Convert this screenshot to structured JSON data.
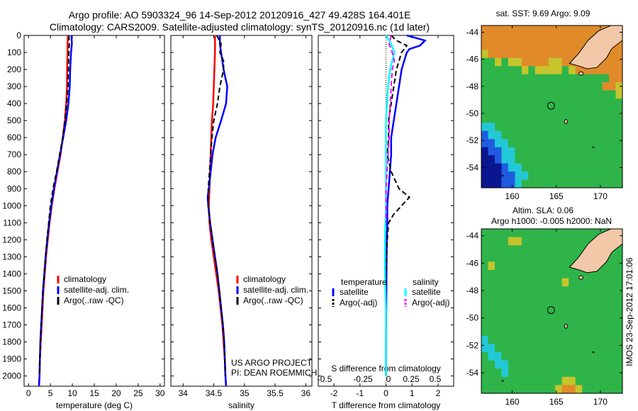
{
  "header": {
    "line1": "Argo profile: AO 5903324_96 14-Sep-2012 20120916_427 49.428S 164.401E",
    "line2": "Climatology: CARS2009. Satellite-adjusted climatology: synTS_20120916.nc (1d later)"
  },
  "depth_ticks": [
    "0",
    "100",
    "200",
    "300",
    "400",
    "500",
    "600",
    "700",
    "800",
    "900",
    "1000",
    "1100",
    "1200",
    "1300",
    "1400",
    "1500",
    "1600",
    "1700",
    "1800",
    "1900",
    "2000"
  ],
  "colors": {
    "climatology": "#ff0000",
    "satellite": "#0000ff",
    "argo": "#000000",
    "satellite_salinity": "#00ffff",
    "argo_salinity": "#ff00ff"
  },
  "chart_data": [
    {
      "type": "line",
      "xlabel": "temperature (deg C)",
      "ylabel": "",
      "xlim": [
        -1,
        31
      ],
      "ylim": [
        2060,
        0
      ],
      "x_ticks": [
        "0",
        "5",
        "10",
        "15",
        "20",
        "25",
        "30"
      ],
      "legend": [
        "climatology",
        "satellite-adj. clim.",
        "Argo(..raw -QC)"
      ],
      "legend_position": "lower-left",
      "series": [
        {
          "name": "climatology",
          "color": "#ff0000",
          "depth": [
            0,
            50,
            100,
            200,
            300,
            400,
            500,
            600,
            700,
            800,
            900,
            1000,
            1100,
            1200,
            1300,
            1400,
            1500,
            1600,
            1700,
            1800,
            1900,
            2000,
            2060
          ],
          "values": [
            9.0,
            8.9,
            8.9,
            8.8,
            8.8,
            8.6,
            8.3,
            7.8,
            7.3,
            6.6,
            5.9,
            5.3,
            4.8,
            4.4,
            4.0,
            3.7,
            3.4,
            3.2,
            3.0,
            2.8,
            2.6,
            2.5,
            2.4
          ]
        },
        {
          "name": "satellite-adj. clim.",
          "color": "#0000ff",
          "depth": [
            0,
            50,
            100,
            200,
            300,
            400,
            500,
            600,
            700,
            800,
            900,
            1000,
            1100,
            1200,
            1300,
            1400,
            1500,
            1600,
            1700,
            1800,
            1900,
            2000,
            2060
          ],
          "values": [
            9.8,
            9.9,
            9.7,
            9.5,
            9.4,
            9.1,
            8.6,
            7.9,
            7.2,
            6.5,
            5.8,
            5.2,
            4.7,
            4.3,
            3.9,
            3.6,
            3.3,
            3.1,
            2.9,
            2.7,
            2.6,
            2.5,
            2.4
          ]
        },
        {
          "name": "Argo(..raw -QC)",
          "color": "#000000",
          "depth": [
            0,
            50,
            100,
            200,
            300,
            400,
            500,
            600,
            700,
            800,
            900,
            1000,
            1100,
            1200,
            1300,
            1400,
            1500,
            1600,
            1700,
            1800,
            1900,
            2000
          ],
          "values": [
            9.2,
            9.3,
            9.2,
            9.1,
            9.0,
            8.7,
            8.3,
            7.8,
            7.1,
            6.4,
            5.6,
            5.0,
            4.6,
            4.2,
            3.9,
            3.6,
            3.3,
            3.1,
            2.9,
            2.7,
            2.6,
            2.5
          ]
        }
      ]
    },
    {
      "type": "line",
      "xlabel": "salinity",
      "ylabel": "",
      "xlim": [
        33.8,
        36.1
      ],
      "ylim": [
        2060,
        0
      ],
      "x_ticks": [
        "34",
        "34.5",
        "35",
        "35.5",
        "36"
      ],
      "legend": [
        "climatology",
        "satellite-adj. clim.",
        "Argo(..raw -QC)"
      ],
      "legend_position": "lower-right",
      "series": [
        {
          "name": "climatology",
          "color": "#ff0000",
          "depth": [
            0,
            100,
            200,
            300,
            400,
            500,
            600,
            700,
            800,
            900,
            1000,
            1100,
            1200,
            1300,
            1400,
            1500,
            1600,
            1700,
            1800,
            1900,
            2000,
            2060
          ],
          "values": [
            34.52,
            34.52,
            34.51,
            34.5,
            34.49,
            34.47,
            34.46,
            34.45,
            34.44,
            34.43,
            34.42,
            34.43,
            34.46,
            34.5,
            34.54,
            34.58,
            34.61,
            34.64,
            34.66,
            34.68,
            34.69,
            34.7
          ]
        },
        {
          "name": "satellite-adj. clim.",
          "color": "#0000ff",
          "depth": [
            0,
            50,
            100,
            200,
            300,
            400,
            500,
            600,
            700,
            800,
            900,
            950,
            1000,
            1100,
            1200,
            1300,
            1400,
            1500,
            1600,
            1700,
            1800,
            1900,
            2000,
            2060
          ],
          "values": [
            34.6,
            34.6,
            34.62,
            34.66,
            34.72,
            34.7,
            34.62,
            34.53,
            34.48,
            34.45,
            34.42,
            34.4,
            34.41,
            34.44,
            34.48,
            34.52,
            34.56,
            34.59,
            34.62,
            34.65,
            34.67,
            34.68,
            34.69,
            34.7
          ]
        },
        {
          "name": "Argo(..raw -QC)",
          "color": "#000000",
          "depth": [
            0,
            50,
            100,
            150,
            200,
            300,
            400,
            500,
            600,
            700,
            800,
            900,
            1000,
            1100,
            1200,
            1300,
            1400,
            1500,
            1600,
            1700,
            1800,
            1900,
            2000
          ],
          "values": [
            34.55,
            34.62,
            34.6,
            34.66,
            34.66,
            34.6,
            34.56,
            34.5,
            34.47,
            34.45,
            34.43,
            34.41,
            34.41,
            34.44,
            34.48,
            34.52,
            34.56,
            34.59,
            34.62,
            34.65,
            34.67,
            34.68,
            34.69
          ]
        }
      ],
      "annotation": [
        "US ARGO PROJECT",
        "PI: DEAN ROEMMICH"
      ]
    },
    {
      "type": "line",
      "xlabel": "T difference from climatology",
      "xlabel_top": "S difference from climatology",
      "ylabel": "",
      "xlim": [
        -2.6,
        2.6
      ],
      "ylim": [
        2060,
        0
      ],
      "x_ticks": [
        "-2",
        "-1",
        "0",
        "1",
        "2"
      ],
      "x_ticks_top": [
        "-0.5",
        "-0.25",
        "0",
        "0.25",
        "0.5"
      ],
      "legend_groups": [
        {
          "title": "temperature",
          "items": [
            "satellite",
            "Argo(-adj)"
          ]
        },
        {
          "title": "salinity",
          "items": [
            "satellite",
            "Argo(-adj)"
          ]
        }
      ],
      "legend_position": "lower-center",
      "series": [
        {
          "name": "temperature satellite",
          "color": "#0000ff",
          "depth": [
            0,
            30,
            60,
            80,
            100,
            150,
            200,
            300,
            400,
            500,
            600,
            700,
            800,
            900,
            1000,
            1100,
            1200,
            1400,
            1600,
            1800,
            2000
          ],
          "values": [
            0.8,
            1.5,
            1.3,
            0.9,
            0.8,
            0.7,
            0.6,
            0.5,
            0.4,
            0.3,
            0.2,
            0.2,
            0.15,
            0.1,
            0.05,
            0.05,
            0.03,
            0.02,
            0.01,
            0.0,
            0.0
          ]
        },
        {
          "name": "temperature Argo(-adj)",
          "color": "#000000",
          "depth": [
            0,
            30,
            60,
            100,
            200,
            300,
            400,
            500,
            600,
            700,
            800,
            900,
            950,
            1000,
            1050,
            1100,
            1200,
            1400,
            1600,
            1800,
            2000
          ],
          "values": [
            0.2,
            0.4,
            0.8,
            0.6,
            0.4,
            0.3,
            0.2,
            0.1,
            0.1,
            0.05,
            0.2,
            0.5,
            0.9,
            0.6,
            0.3,
            0.1,
            0.05,
            0.0,
            0.0,
            0.0,
            0.0
          ]
        },
        {
          "name": "salinity satellite",
          "color": "#00ffff",
          "depth": [
            0,
            50,
            100,
            200,
            300,
            400,
            500,
            600,
            700,
            800,
            900,
            1000,
            1200,
            1400,
            1600,
            1800,
            2000
          ],
          "values": [
            0.0,
            0.05,
            0.08,
            0.04,
            0.02,
            0.01,
            0.0,
            0.0,
            0.0,
            0.0,
            0.0,
            0.0,
            -0.01,
            -0.01,
            0.0,
            0.0,
            0.0
          ]
        },
        {
          "name": "salinity Argo(-adj)",
          "color": "#ff00ff",
          "depth": [
            0,
            50,
            100,
            150,
            200,
            300,
            400,
            500,
            600,
            700,
            800,
            900,
            1000,
            1100
          ],
          "values": [
            0.05,
            0.03,
            0.06,
            0.08,
            0.06,
            0.05,
            0.04,
            0.03,
            0.03,
            0.02,
            0.01,
            0.0,
            0.0,
            0.0
          ]
        }
      ]
    }
  ],
  "maps": [
    {
      "title": "sat. SST: 9.69 Argo: 9.09",
      "subtitle": "",
      "y_ticks": [
        "-44",
        "-46",
        "-48",
        "-50",
        "-52",
        "-54"
      ],
      "x_ticks": [
        "160",
        "165",
        "170"
      ],
      "marker": {
        "lat": -49.43,
        "lon": 164.4
      },
      "field": [
        "OOOOOOOOOOOOOOOOOOOOO",
        "OOOOOOOOOOOOOOOOOOOOO",
        "OOOOOOOOOOOOOOOOOOOOO",
        "YOOOOOOOOOOOOOOOOOOOO",
        "GGYGYYOOOOYYOOOOOOOOO",
        "GGGGGGYGYYYYGYOOOOOOO",
        "GGGGGGGGGGGGGGGGGGGOO",
        "GGGGGGGGGGGGGGGGGGOOY",
        "GGGGGGGGGGGGGGGGGGGGY",
        "GGGGGGGGGGGGGGGGGGGGG",
        "GGGGGGGGGGGGGGGGGGGGG",
        "GGGGGGGGGGGGGGGGGGGGG",
        "CCGGGGGGGGGGGGGGGGGGG",
        "BCCGGGGGGGGGGGGGGGGGG",
        "BBCCGGGGGGGGGGGGGGGGG",
        "DBBCCGGGGGGGGGGGGGGGG",
        "DDBCCGGGGGGGGGGGGGGGG",
        "DDDBCCGGGGGGGGGGGGGGG",
        "DDDBBCCGGGGGGGGGGGGGG",
        "DDDBBCGGGGGGGGGGGGGGG"
      ]
    },
    {
      "title": "Altim. SLA: 0.06",
      "subtitle": "Argo h1000: -0.005 h2000: NaN",
      "y_ticks": [
        "-44",
        "-46",
        "-48",
        "-50",
        "-52",
        "-54"
      ],
      "x_ticks": [
        "160",
        "165",
        "170"
      ],
      "marker": {
        "lat": -49.43,
        "lon": 164.4
      },
      "field": [
        "GGGGGGGGGGGGGGGGGGGGG",
        "GGGGYYGGGGGGGGGGGGGGG",
        "GGGGGGGGGGGGGGGGGGGGG",
        "GGGGGGGGGGGGGGGGGGGGG",
        "GYGGGGGGGGGGGGGGGGGGG",
        "GGGGGGGGGGGGGGGGGGGGG",
        "GGGGGGGGGGGGYGGGGGGGG",
        "GGGGGGGGGGGGGGGGGGGGG",
        "GGGGGGGGGGGGGGGGGGGGG",
        "GGGGGGGGGGGGGGGGGGGGG",
        "GGGGGGGGGGGGGGGGGGGGG",
        "GGGGGGGGGGGGGGGGGGGGG",
        "GGGGGGGGGGGGGGGGGGGGG",
        "CGGGGGGGGGGGGGGGGGGGG",
        "CCGGGGGGGGGGGGGGGGGGG",
        "GCCGGGGGGGGGGGGGGGGGG",
        "GGCCGGGGGGGGGGGGGGGGG",
        "GGGCGGGGGGGGGGGGGGGGG",
        "GGGGGGGGGGGGYYGGGGGGG",
        "GGGGGGGGGGGYOOYGGGGGG"
      ]
    }
  ],
  "footer_stamp": "IMOS 23-Sep-2012 17:01:06"
}
